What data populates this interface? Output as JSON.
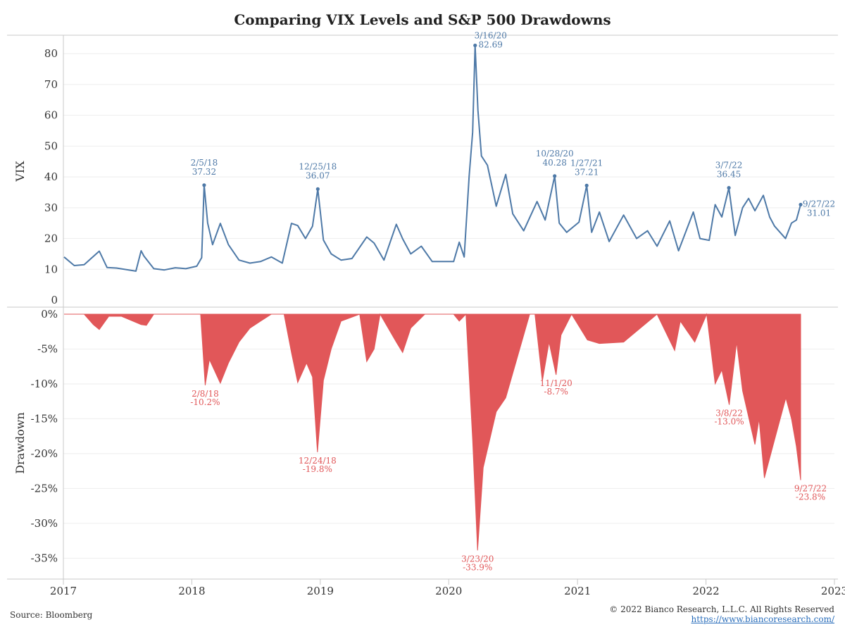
{
  "title": "Comparing VIX Levels and S&P 500 Drawdowns",
  "footer": {
    "source": "Source: Bloomberg",
    "copyright": "© 2022 Bianco Research, L.L.C. All Rights Reserved",
    "url": "https://www.biancoresearch.com/"
  },
  "colors": {
    "vix": "#4e79a7",
    "drawdown": "#e15759",
    "grid": "#eeeeee",
    "axis": "#c8c8c8"
  },
  "chart_data": [
    {
      "type": "line",
      "panel": "top",
      "ylabel": "VIX",
      "ylim": [
        0,
        86
      ],
      "yticks": [
        0,
        10,
        20,
        30,
        40,
        50,
        60,
        70,
        80
      ],
      "xlim": [
        "2017-01-01",
        "2023-01-01"
      ],
      "xticks": [
        "2017",
        "2018",
        "2019",
        "2020",
        "2021",
        "2022",
        "2023"
      ],
      "series": [
        {
          "x": [
            "2017-01-03",
            "2017-02-01",
            "2017-03-01",
            "2017-04-13",
            "2017-05-05",
            "2017-06-01",
            "2017-07-26",
            "2017-08-10",
            "2017-08-18",
            "2017-09-15",
            "2017-10-15",
            "2017-11-15",
            "2017-12-15",
            "2018-01-15",
            "2018-01-29",
            "2018-02-05",
            "2018-02-15",
            "2018-03-01",
            "2018-03-23",
            "2018-04-15",
            "2018-05-15",
            "2018-06-15",
            "2018-07-15",
            "2018-08-15",
            "2018-09-15",
            "2018-10-11",
            "2018-10-29",
            "2018-11-20",
            "2018-12-10",
            "2018-12-25",
            "2019-01-10",
            "2019-02-01",
            "2019-03-01",
            "2019-04-01",
            "2019-05-13",
            "2019-06-03",
            "2019-07-01",
            "2019-08-05",
            "2019-08-23",
            "2019-09-15",
            "2019-10-15",
            "2019-11-15",
            "2019-12-15",
            "2020-01-15",
            "2020-01-31",
            "2020-02-14",
            "2020-02-28",
            "2020-03-09",
            "2020-03-16",
            "2020-03-24",
            "2020-04-03",
            "2020-04-20",
            "2020-05-15",
            "2020-06-11",
            "2020-07-01",
            "2020-08-01",
            "2020-09-08",
            "2020-10-01",
            "2020-10-28",
            "2020-11-10",
            "2020-12-01",
            "2021-01-05",
            "2021-01-27",
            "2021-02-10",
            "2021-03-04",
            "2021-04-01",
            "2021-05-12",
            "2021-06-18",
            "2021-07-19",
            "2021-08-15",
            "2021-09-20",
            "2021-10-15",
            "2021-11-26",
            "2021-12-15",
            "2022-01-10",
            "2022-01-27",
            "2022-02-15",
            "2022-03-07",
            "2022-03-25",
            "2022-04-15",
            "2022-05-02",
            "2022-05-20",
            "2022-06-13",
            "2022-07-01",
            "2022-07-15",
            "2022-08-15",
            "2022-09-01",
            "2022-09-15",
            "2022-09-27"
          ],
          "values": [
            14.0,
            11.2,
            11.5,
            15.9,
            10.6,
            10.4,
            9.4,
            16.0,
            14.3,
            10.2,
            9.8,
            10.5,
            10.2,
            11.0,
            13.8,
            37.32,
            25.0,
            18.0,
            24.9,
            18.0,
            13.0,
            12.0,
            12.5,
            14.0,
            12.0,
            24.9,
            24.2,
            20.0,
            24.0,
            36.07,
            19.5,
            15.0,
            13.0,
            13.5,
            20.5,
            18.5,
            13.0,
            24.6,
            19.9,
            15.0,
            17.5,
            12.5,
            12.5,
            12.5,
            18.8,
            14.0,
            40.1,
            54.5,
            82.69,
            61.7,
            46.8,
            43.8,
            30.5,
            40.8,
            28.0,
            22.5,
            32.0,
            26.0,
            40.28,
            25.0,
            22.0,
            25.3,
            37.21,
            22.0,
            28.6,
            19.0,
            27.6,
            20.0,
            22.5,
            17.5,
            25.7,
            16.0,
            28.6,
            20.0,
            19.4,
            31.0,
            27.0,
            36.45,
            21.0,
            30.0,
            33.0,
            29.0,
            34.0,
            27.0,
            24.0,
            20.0,
            25.0,
            26.0,
            31.01
          ]
        }
      ],
      "annotations": [
        {
          "date": "2/5/18",
          "value": "37.32"
        },
        {
          "date": "12/25/18",
          "value": "36.07"
        },
        {
          "date": "3/16/20",
          "value": "82.69"
        },
        {
          "date": "10/28/20",
          "value": "40.28"
        },
        {
          "date": "1/27/21",
          "value": "37.21"
        },
        {
          "date": "3/7/22",
          "value": "36.45"
        },
        {
          "date": "9/27/22",
          "value": "31.01"
        }
      ]
    },
    {
      "type": "area",
      "panel": "bottom",
      "ylabel": "Drawdown",
      "ylim": [
        -38,
        0
      ],
      "yticks": [
        "0%",
        "-5%",
        "-10%",
        "-15%",
        "-20%",
        "-25%",
        "-30%",
        "-35%"
      ],
      "series": [
        {
          "x": [
            "2017-01-03",
            "2017-03-01",
            "2017-03-27",
            "2017-04-13",
            "2017-05-10",
            "2017-06-15",
            "2017-08-10",
            "2017-08-25",
            "2017-09-15",
            "2017-12-31",
            "2018-01-26",
            "2018-02-08",
            "2018-02-20",
            "2018-03-23",
            "2018-04-15",
            "2018-05-15",
            "2018-06-15",
            "2018-07-15",
            "2018-08-15",
            "2018-09-20",
            "2018-10-11",
            "2018-10-29",
            "2018-11-23",
            "2018-12-10",
            "2018-12-24",
            "2019-01-10",
            "2019-02-01",
            "2019-03-01",
            "2019-04-23",
            "2019-05-13",
            "2019-06-03",
            "2019-06-20",
            "2019-08-05",
            "2019-08-23",
            "2019-09-15",
            "2019-10-25",
            "2020-01-15",
            "2020-01-31",
            "2020-02-19",
            "2020-03-09",
            "2020-03-23",
            "2020-04-08",
            "2020-05-15",
            "2020-06-11",
            "2020-07-15",
            "2020-08-18",
            "2020-09-02",
            "2020-09-23",
            "2020-10-12",
            "2020-11-01",
            "2020-11-15",
            "2020-12-15",
            "2021-01-29",
            "2021-03-04",
            "2021-05-12",
            "2021-08-15",
            "2021-10-04",
            "2021-10-20",
            "2021-11-30",
            "2022-01-03",
            "2022-01-27",
            "2022-02-15",
            "2022-03-08",
            "2022-03-29",
            "2022-04-15",
            "2022-05-20",
            "2022-06-01",
            "2022-06-16",
            "2022-07-15",
            "2022-08-16",
            "2022-09-01",
            "2022-09-15",
            "2022-09-27"
          ],
          "values": [
            0,
            0,
            -1.5,
            -2.2,
            -0.3,
            -0.3,
            -1.5,
            -1.6,
            0,
            0,
            0,
            -10.2,
            -6.5,
            -9.9,
            -7.0,
            -4.0,
            -2.0,
            -1.0,
            0,
            0,
            -5.5,
            -9.8,
            -7.0,
            -9.0,
            -19.8,
            -9.5,
            -5.0,
            -1.0,
            0,
            -6.8,
            -5.0,
            0,
            -4.0,
            -5.5,
            -2.0,
            0,
            0,
            -1.0,
            0,
            -18.0,
            -33.9,
            -22.0,
            -14.0,
            -12.0,
            -6.0,
            0,
            0,
            -9.6,
            -4.0,
            -8.7,
            -3.0,
            0,
            -3.7,
            -4.2,
            -4.0,
            0,
            -5.2,
            -1.0,
            -4.0,
            0,
            -10.0,
            -8.0,
            -13.0,
            -4.0,
            -11.0,
            -18.7,
            -15.0,
            -23.5,
            -18.0,
            -12.0,
            -15.0,
            -19.0,
            -23.8
          ]
        }
      ],
      "annotations": [
        {
          "date": "2/8/18",
          "value": "-10.2%"
        },
        {
          "date": "12/24/18",
          "value": "-19.8%"
        },
        {
          "date": "3/23/20",
          "value": "-33.9%"
        },
        {
          "date": "11/1/20",
          "value": "-8.7%"
        },
        {
          "date": "3/8/22",
          "value": "-13.0%"
        },
        {
          "date": "9/27/22",
          "value": "-23.8%"
        }
      ]
    }
  ]
}
